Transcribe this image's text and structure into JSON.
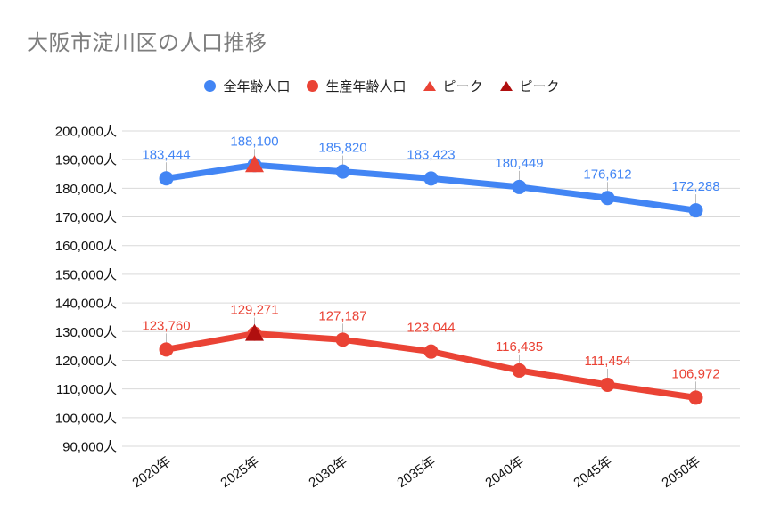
{
  "title": "大阪市淀川区の人口推移",
  "legend": {
    "items": [
      {
        "label": "全年齢人口",
        "marker": "circle",
        "color": "#4285F4",
        "icon": "blue-circle-marker-icon"
      },
      {
        "label": "生産年齢人口",
        "marker": "circle",
        "color": "#EA4335",
        "icon": "red-circle-marker-icon"
      },
      {
        "label": "ピーク",
        "marker": "triangle",
        "color": "#EA4335",
        "icon": "red-triangle-marker-icon"
      },
      {
        "label": "ピーク",
        "marker": "triangle",
        "color": "#B00F0F",
        "icon": "darkred-triangle-marker-icon"
      }
    ]
  },
  "chart_data": {
    "type": "line",
    "title": "大阪市淀川区の人口推移",
    "categories": [
      "2020年",
      "2025年",
      "2030年",
      "2035年",
      "2040年",
      "2045年",
      "2050年"
    ],
    "series": [
      {
        "name": "全年齢人口",
        "color": "#4285F4",
        "values": [
          183444,
          188100,
          185820,
          183423,
          180449,
          176612,
          172288
        ],
        "peak_index": 1,
        "peak_value": 188100,
        "peak_marker_color": "#EA4335"
      },
      {
        "name": "生産年齢人口",
        "color": "#EA4335",
        "values": [
          123760,
          129271,
          127187,
          123044,
          116435,
          111454,
          106972
        ],
        "peak_index": 1,
        "peak_value": 129271,
        "peak_marker_color": "#B00F0F"
      }
    ],
    "y_axis": {
      "min": 90000,
      "max": 200000,
      "step": 10000,
      "suffix": "人"
    },
    "x_label_rotation_deg": -35,
    "grid": true,
    "gridline_color": "#d9d9d9",
    "leader_line_color": "#bdbdbd",
    "legend_position": "top",
    "data_labels": true
  }
}
